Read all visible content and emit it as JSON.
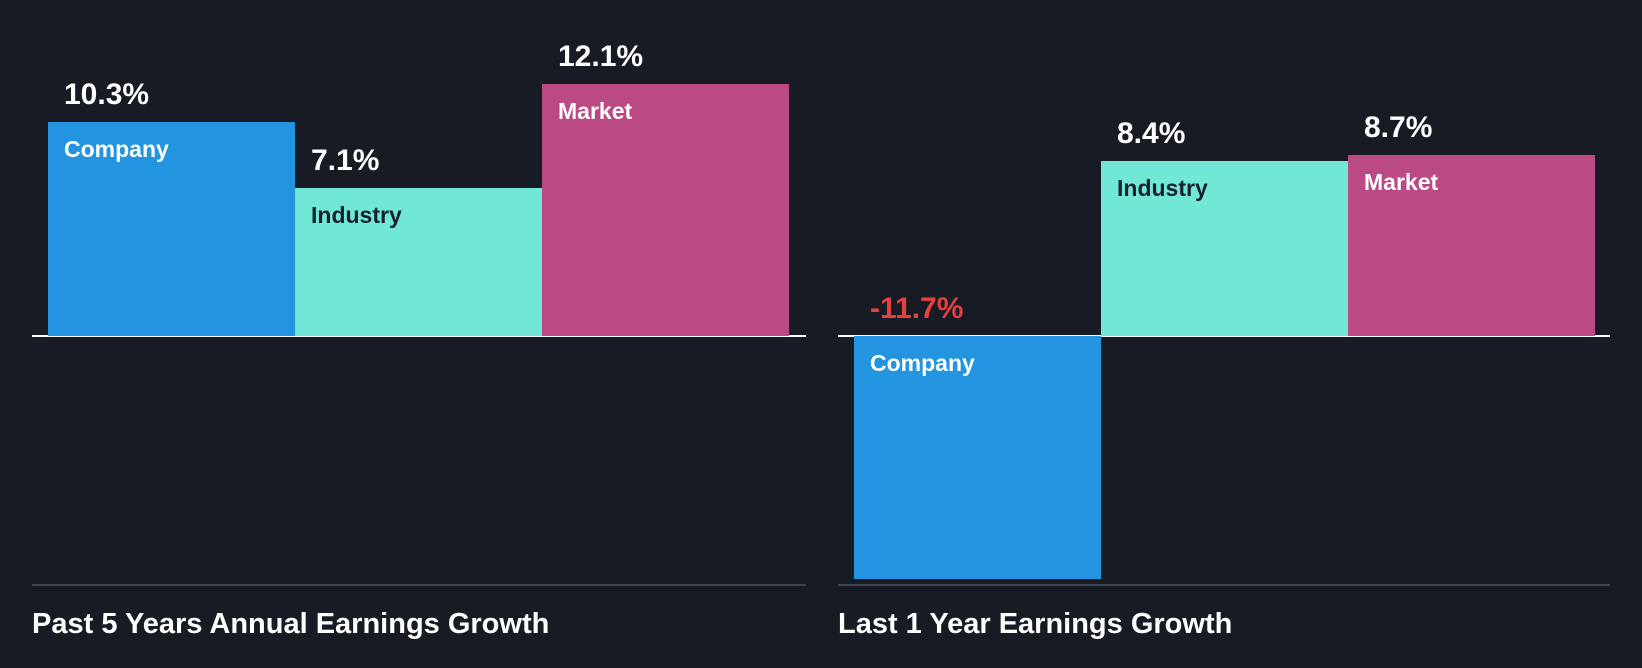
{
  "chart_data": [
    {
      "type": "bar",
      "title": "Past 5 Years Annual Earnings Growth",
      "categories": [
        "Company",
        "Industry",
        "Market"
      ],
      "values": [
        10.3,
        7.1,
        12.1
      ],
      "value_labels": [
        "10.3%",
        "7.1%",
        "12.1%"
      ],
      "colors": [
        "#2394df",
        "#71e7d6",
        "#bb4983"
      ],
      "label_colors": [
        "#ffffff",
        "#18202b",
        "#ffffff"
      ],
      "value_label_colors": [
        "#ffffff",
        "#ffffff",
        "#ffffff"
      ],
      "unit": "%",
      "grid": false,
      "legend": "none"
    },
    {
      "type": "bar",
      "title": "Last 1 Year Earnings Growth",
      "categories": [
        "Company",
        "Industry",
        "Market"
      ],
      "values": [
        -11.7,
        8.4,
        8.7
      ],
      "value_labels": [
        "-11.7%",
        "8.4%",
        "8.7%"
      ],
      "colors": [
        "#2394df",
        "#71e7d6",
        "#bb4983"
      ],
      "label_colors": [
        "#ffffff",
        "#18202b",
        "#ffffff"
      ],
      "value_label_colors": [
        "#e64141",
        "#ffffff",
        "#ffffff"
      ],
      "unit": "%",
      "grid": false,
      "legend": "none"
    }
  ]
}
